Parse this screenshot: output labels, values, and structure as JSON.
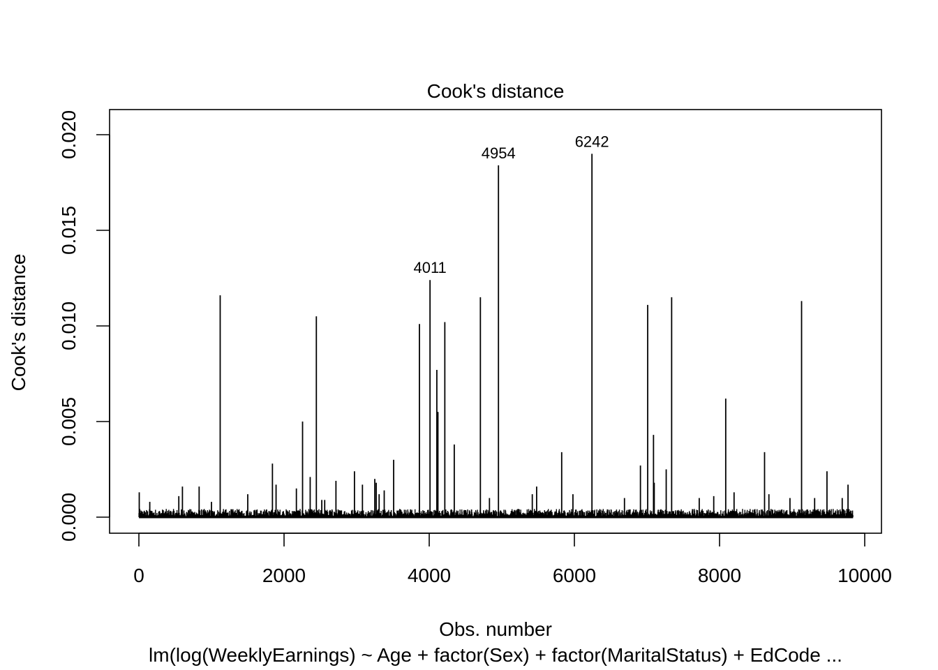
{
  "chart_data": {
    "type": "bar",
    "title": "Cook's distance",
    "xlabel": "Obs. number",
    "ylabel": "Cook's distance",
    "subtitle": "lm(log(WeeklyEarnings) ~ Age + factor(Sex) + factor(MaritalStatus) + EdCode ...",
    "xlim": [
      0,
      10000
    ],
    "ylim": [
      0,
      0.02
    ],
    "x_ticks": [
      "0",
      "2000",
      "4000",
      "6000",
      "8000",
      "10000"
    ],
    "y_ticks": [
      "0.000",
      "0.005",
      "0.010",
      "0.015",
      "0.020"
    ],
    "n_obs": 9840,
    "labeled_points": [
      {
        "x": 4011,
        "y": 0.0124,
        "label": "4011"
      },
      {
        "x": 4954,
        "y": 0.0184,
        "label": "4954"
      },
      {
        "x": 6242,
        "y": 0.019,
        "label": "6242"
      }
    ],
    "notable_points": [
      {
        "x": 4011,
        "y": 0.0124
      },
      {
        "x": 4954,
        "y": 0.0184
      },
      {
        "x": 6242,
        "y": 0.019
      },
      {
        "x": 1120,
        "y": 0.0116
      },
      {
        "x": 2445,
        "y": 0.0105
      },
      {
        "x": 3865,
        "y": 0.0101
      },
      {
        "x": 4215,
        "y": 0.0102
      },
      {
        "x": 4705,
        "y": 0.0115
      },
      {
        "x": 7010,
        "y": 0.0111
      },
      {
        "x": 7340,
        "y": 0.0115
      },
      {
        "x": 9130,
        "y": 0.0113
      },
      {
        "x": 4105,
        "y": 0.0077
      },
      {
        "x": 4120,
        "y": 0.0055
      },
      {
        "x": 8085,
        "y": 0.0062
      },
      {
        "x": 2255,
        "y": 0.005
      },
      {
        "x": 7090,
        "y": 0.0043
      },
      {
        "x": 4345,
        "y": 0.0038
      },
      {
        "x": 5825,
        "y": 0.0034
      },
      {
        "x": 8620,
        "y": 0.0034
      },
      {
        "x": 3510,
        "y": 0.003
      },
      {
        "x": 1840,
        "y": 0.0028
      },
      {
        "x": 6910,
        "y": 0.0027
      },
      {
        "x": 7265,
        "y": 0.0025
      },
      {
        "x": 2970,
        "y": 0.0024
      },
      {
        "x": 9480,
        "y": 0.0024
      },
      {
        "x": 2360,
        "y": 0.0021
      },
      {
        "x": 3250,
        "y": 0.002
      },
      {
        "x": 3270,
        "y": 0.0018
      },
      {
        "x": 2715,
        "y": 0.0019
      },
      {
        "x": 7100,
        "y": 0.0018
      },
      {
        "x": 9770,
        "y": 0.0017
      },
      {
        "x": 1890,
        "y": 0.0017
      },
      {
        "x": 3080,
        "y": 0.0017
      },
      {
        "x": 830,
        "y": 0.0016
      },
      {
        "x": 600,
        "y": 0.0016
      },
      {
        "x": 5480,
        "y": 0.0016
      },
      {
        "x": 2170,
        "y": 0.0015
      },
      {
        "x": 3380,
        "y": 0.0014
      },
      {
        "x": 3310,
        "y": 0.0012
      },
      {
        "x": 5,
        "y": 0.0013
      },
      {
        "x": 5420,
        "y": 0.0012
      },
      {
        "x": 5980,
        "y": 0.0012
      },
      {
        "x": 8200,
        "y": 0.0013
      },
      {
        "x": 8680,
        "y": 0.0012
      },
      {
        "x": 550,
        "y": 0.0011
      },
      {
        "x": 1500,
        "y": 0.0012
      },
      {
        "x": 7920,
        "y": 0.0011
      },
      {
        "x": 8970,
        "y": 0.001
      },
      {
        "x": 2560,
        "y": 0.0009
      },
      {
        "x": 4830,
        "y": 0.001
      },
      {
        "x": 9690,
        "y": 0.001
      },
      {
        "x": 7720,
        "y": 0.001
      },
      {
        "x": 2520,
        "y": 0.0009
      },
      {
        "x": 150,
        "y": 0.0008
      },
      {
        "x": 1000,
        "y": 0.0008
      },
      {
        "x": 6690,
        "y": 0.001
      },
      {
        "x": 9310,
        "y": 0.001
      }
    ]
  }
}
